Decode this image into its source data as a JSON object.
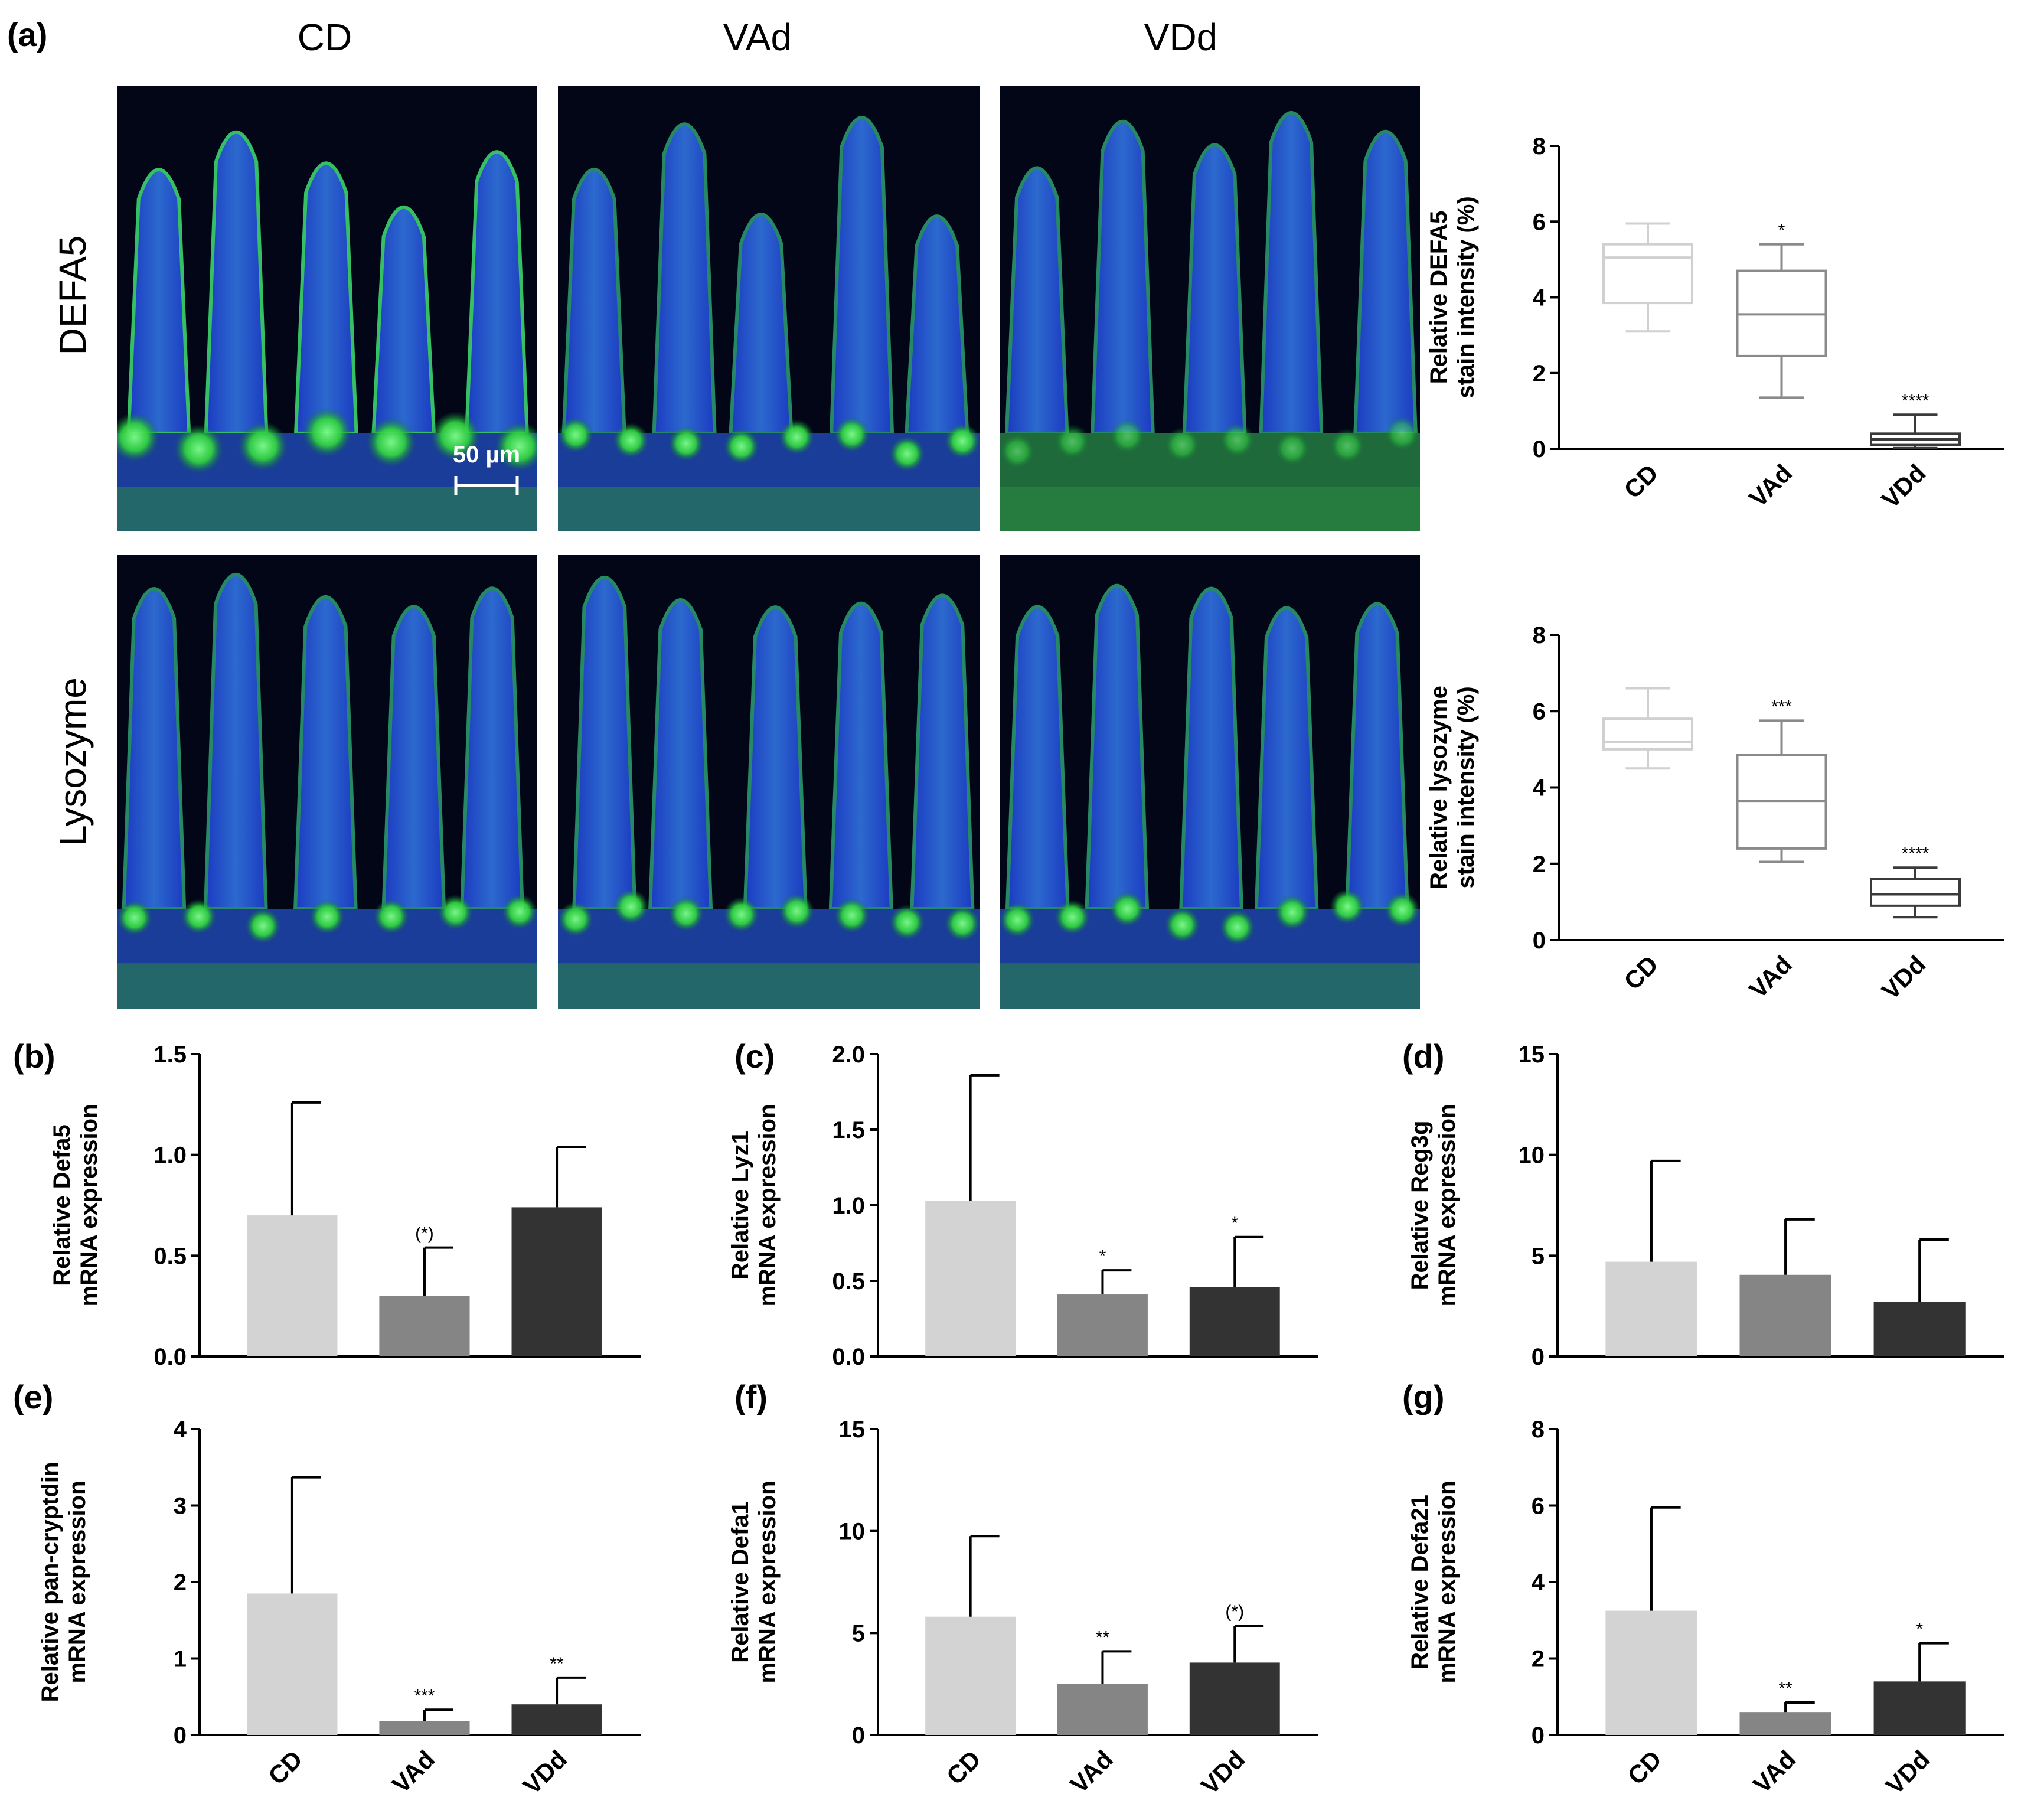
{
  "panel_a": {
    "letter": "(a)",
    "columns": [
      "CD",
      "VAd",
      "VDd"
    ],
    "rows": [
      "DEFA5",
      "Lysozyme"
    ],
    "scale_bar": "50 µm"
  },
  "colors": {
    "CD": "#d3d3d3",
    "VAd": "#858585",
    "VDd": "#333333",
    "box_CD": "#d0d0d0",
    "box_VAd": "#8a8a8a",
    "box_VDd": "#3a3a3a",
    "stain_nuclei": "#1c3fd0",
    "stain_signal": "#34d23a"
  },
  "chart_data": [
    {
      "id": "a-box-defa5",
      "type": "box",
      "categories": [
        "CD",
        "VAd",
        "VDd"
      ],
      "ylabel": "Relative DEFA5\nstain intensity (%)",
      "ylim": [
        0,
        8
      ],
      "yticks": [
        0,
        2,
        4,
        6,
        8
      ],
      "boxes": [
        {
          "min": 3.1,
          "q1": 3.85,
          "median": 5.05,
          "q3": 5.4,
          "max": 5.95,
          "sig": ""
        },
        {
          "min": 1.35,
          "q1": 2.45,
          "median": 3.55,
          "q3": 4.7,
          "max": 5.4,
          "sig": "*"
        },
        {
          "min": 0.02,
          "q1": 0.1,
          "median": 0.25,
          "q3": 0.4,
          "max": 0.9,
          "sig": "****"
        }
      ]
    },
    {
      "id": "a-box-lysozyme",
      "type": "box",
      "categories": [
        "CD",
        "VAd",
        "VDd"
      ],
      "ylabel": "Relative lysozyme\nstain intensity (%)",
      "ylim": [
        0,
        8
      ],
      "yticks": [
        0,
        2,
        4,
        6,
        8
      ],
      "boxes": [
        {
          "min": 4.5,
          "q1": 5.0,
          "median": 5.2,
          "q3": 5.8,
          "max": 6.6,
          "sig": ""
        },
        {
          "min": 2.05,
          "q1": 2.4,
          "median": 3.65,
          "q3": 4.85,
          "max": 5.75,
          "sig": "***"
        },
        {
          "min": 0.6,
          "q1": 0.9,
          "median": 1.2,
          "q3": 1.6,
          "max": 1.9,
          "sig": "****"
        }
      ]
    },
    {
      "id": "b",
      "letter": "(b)",
      "type": "bar",
      "categories": [
        "CD",
        "VAd",
        "VDd"
      ],
      "ylabel": "Relative Defa5\nmRNA expression",
      "ylim": [
        0,
        1.5
      ],
      "yticks": [
        "0.0",
        "0.5",
        "1.0",
        "1.5"
      ],
      "values": [
        0.7,
        0.3,
        0.74
      ],
      "errors": [
        0.56,
        0.24,
        0.3
      ],
      "sig": [
        "",
        "(*)",
        ""
      ],
      "show_categories": false
    },
    {
      "id": "c",
      "letter": "(c)",
      "type": "bar",
      "categories": [
        "CD",
        "VAd",
        "VDd"
      ],
      "ylabel": "Relative Lyz1\nmRNA expression",
      "ylim": [
        0,
        2.0
      ],
      "yticks": [
        "0.0",
        "0.5",
        "1.0",
        "1.5",
        "2.0"
      ],
      "values": [
        1.03,
        0.41,
        0.46
      ],
      "errors": [
        0.83,
        0.16,
        0.33
      ],
      "sig": [
        "",
        "*",
        "*"
      ],
      "show_categories": false
    },
    {
      "id": "d",
      "letter": "(d)",
      "type": "bar",
      "categories": [
        "CD",
        "VAd",
        "VDd"
      ],
      "ylabel": "Relative Reg3g\nmRNA expression",
      "ylim": [
        0,
        15
      ],
      "yticks": [
        "0",
        "5",
        "10",
        "15"
      ],
      "values": [
        4.7,
        4.05,
        2.7
      ],
      "errors": [
        5.0,
        2.75,
        3.1
      ],
      "sig": [
        "",
        "",
        ""
      ],
      "show_categories": false
    },
    {
      "id": "e",
      "letter": "(e)",
      "type": "bar",
      "categories": [
        "CD",
        "VAd",
        "VDd"
      ],
      "ylabel": "Relative pan-cryptdin\nmRNA expression",
      "ylim": [
        0,
        4
      ],
      "yticks": [
        "0",
        "1",
        "2",
        "3",
        "4"
      ],
      "values": [
        1.85,
        0.18,
        0.4
      ],
      "errors": [
        1.52,
        0.15,
        0.35
      ],
      "sig": [
        "",
        "***",
        "**"
      ],
      "show_categories": true
    },
    {
      "id": "f",
      "letter": "(f)",
      "type": "bar",
      "categories": [
        "CD",
        "VAd",
        "VDd"
      ],
      "ylabel": "Relative Defa1\nmRNA expression",
      "ylim": [
        0,
        15
      ],
      "yticks": [
        "0",
        "5",
        "10",
        "15"
      ],
      "values": [
        5.8,
        2.5,
        3.55
      ],
      "errors": [
        3.95,
        1.6,
        1.8
      ],
      "sig": [
        "",
        "**",
        "(*)"
      ],
      "show_categories": true
    },
    {
      "id": "g",
      "letter": "(g)",
      "type": "bar",
      "categories": [
        "CD",
        "VAd",
        "VDd"
      ],
      "ylabel": "Relative Defa21\nmRNA expression",
      "ylim": [
        0,
        8
      ],
      "yticks": [
        "0",
        "2",
        "4",
        "6",
        "8"
      ],
      "values": [
        3.25,
        0.6,
        1.4
      ],
      "errors": [
        2.7,
        0.25,
        1.0
      ],
      "sig": [
        "",
        "**",
        "*"
      ],
      "show_categories": true
    }
  ]
}
